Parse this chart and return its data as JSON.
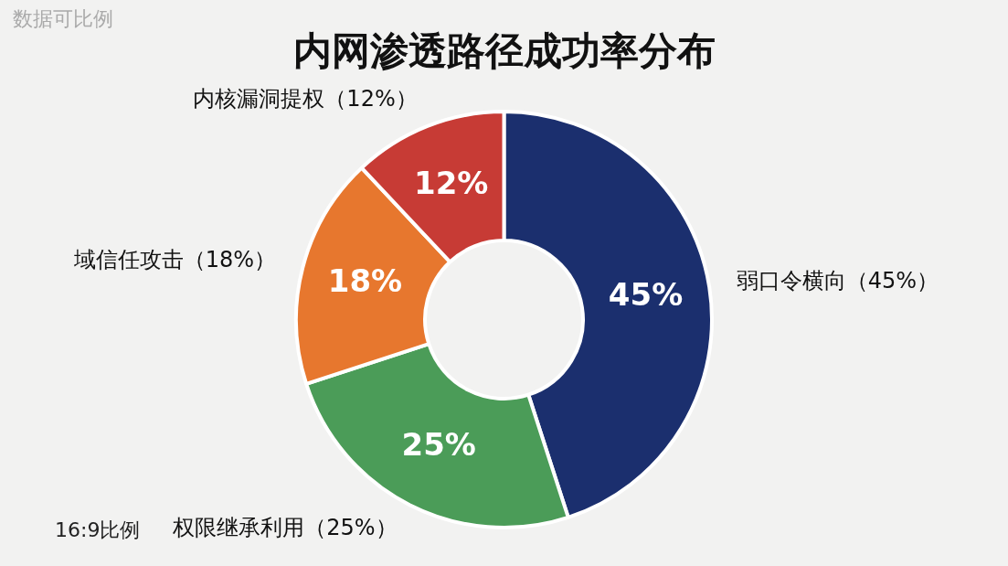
{
  "chart_data": {
    "type": "donut",
    "title": "内网渗透路径成功率分布",
    "categories": [
      "弱口令横向（45%）",
      "权限继承利用（25%）",
      "域信任攻击（18%）",
      "内核漏洞提权（12%）"
    ],
    "values": [
      45,
      25,
      18,
      12
    ],
    "colors": [
      "#1b2f6e",
      "#4b9c58",
      "#e7772e",
      "#c73b35"
    ],
    "value_labels": [
      "45%",
      "25%",
      "18%",
      "12%"
    ],
    "annotations": [
      "数据可比例",
      "16:9比例"
    ]
  }
}
